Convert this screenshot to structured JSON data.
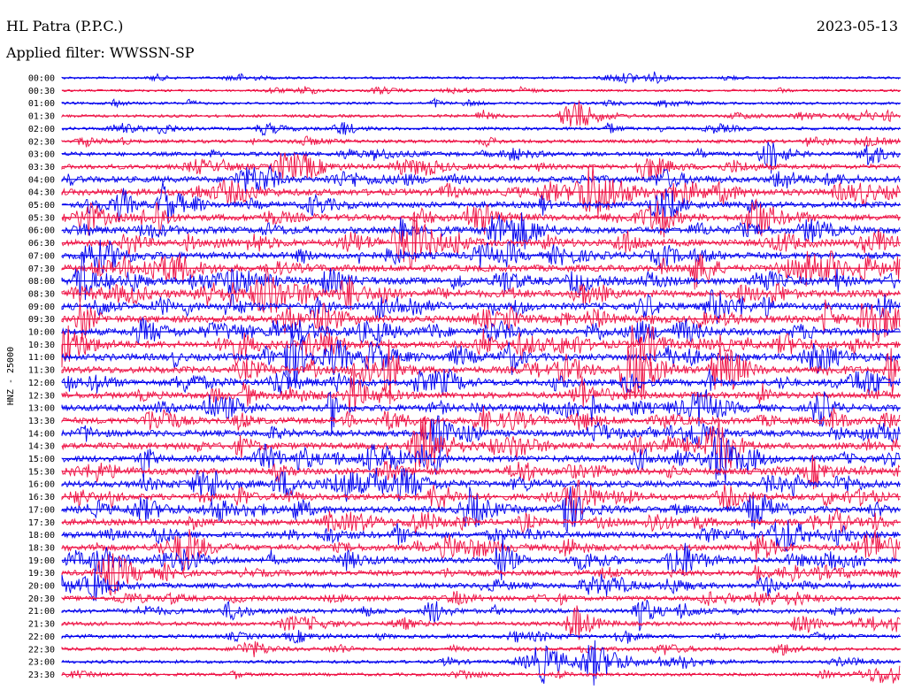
{
  "header": {
    "station": "HL Patra (P.P.C.)",
    "filter": "Applied filter: WWSSN-SP",
    "date": "2023-05-13"
  },
  "chart_data": {
    "type": "line",
    "ylabel": "HNZ - 25000",
    "row_labels": [
      "00:00",
      "00:30",
      "01:00",
      "01:30",
      "02:00",
      "02:30",
      "03:00",
      "03:30",
      "04:00",
      "04:30",
      "05:00",
      "05:30",
      "06:00",
      "06:30",
      "07:00",
      "07:30",
      "08:00",
      "08:30",
      "09:00",
      "09:30",
      "10:00",
      "10:30",
      "11:00",
      "11:30",
      "12:00",
      "12:30",
      "13:00",
      "13:30",
      "14:00",
      "14:30",
      "15:00",
      "15:30",
      "16:00",
      "16:30",
      "17:00",
      "17:30",
      "18:00",
      "18:30",
      "19:00",
      "19:30",
      "20:00",
      "20:30",
      "21:00",
      "21:30",
      "22:00",
      "22:30",
      "23:00",
      "23:30"
    ],
    "colors": [
      "#0000ee",
      "#ee1144"
    ],
    "activity": [
      0.15,
      0.15,
      0.2,
      0.25,
      0.3,
      0.35,
      0.45,
      0.6,
      0.8,
      0.85,
      0.8,
      0.85,
      0.85,
      0.9,
      0.9,
      0.9,
      0.95,
      0.95,
      0.95,
      0.95,
      0.9,
      0.95,
      0.95,
      0.9,
      0.85,
      0.85,
      0.85,
      0.85,
      0.85,
      0.85,
      0.85,
      0.85,
      0.85,
      0.85,
      0.8,
      0.8,
      0.8,
      0.8,
      0.75,
      0.7,
      0.6,
      0.55,
      0.5,
      0.45,
      0.4,
      0.35,
      0.3,
      0.3
    ]
  }
}
